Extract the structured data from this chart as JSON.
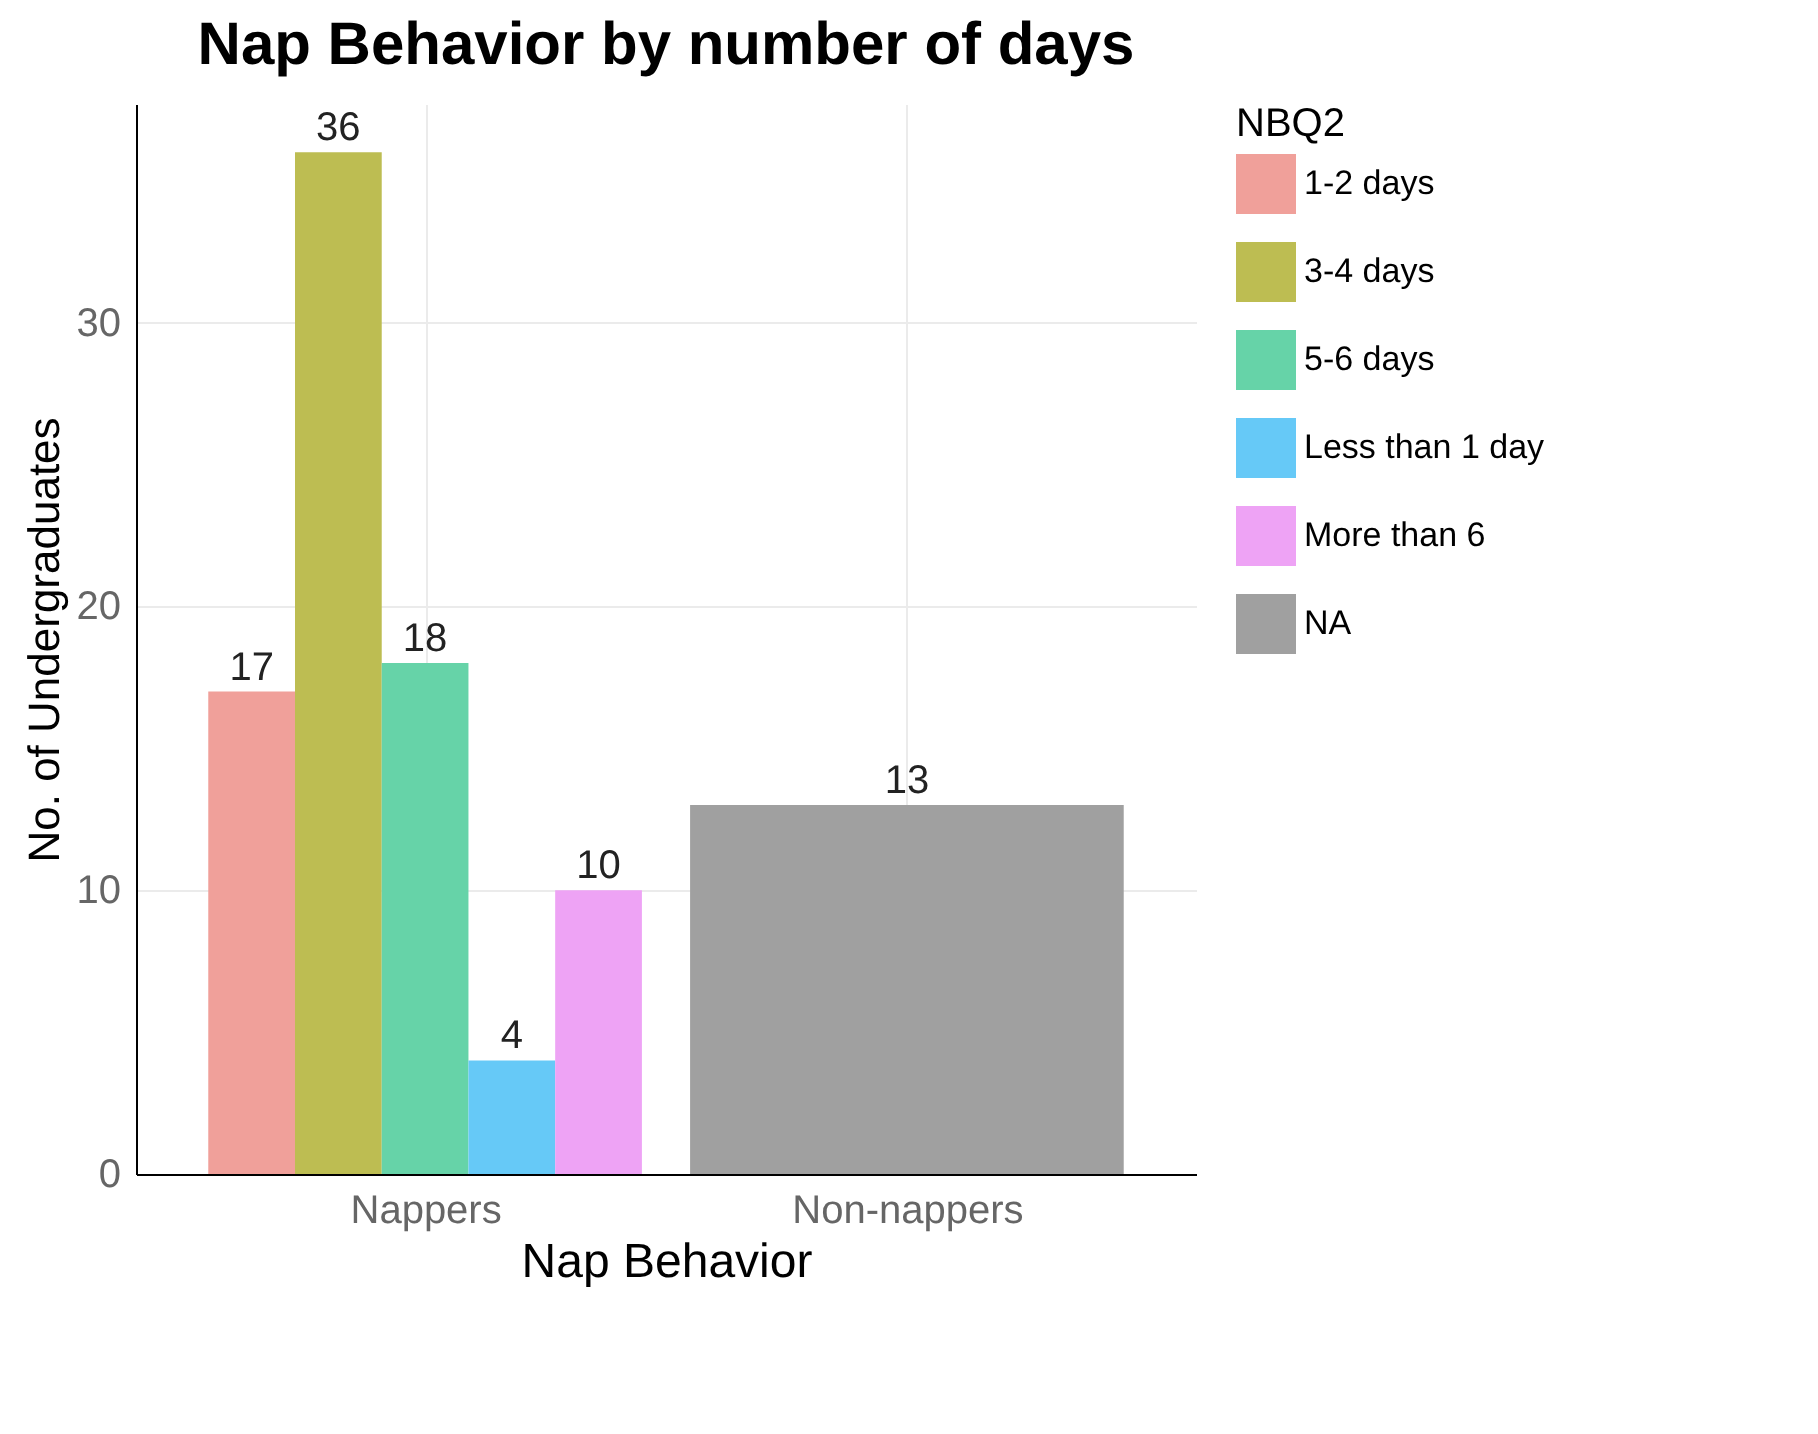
{
  "chart_data": {
    "type": "bar",
    "title": "Nap Behavior by number of days",
    "xlabel": "Nap Behavior",
    "ylabel": "No. of Undergraduates",
    "legend_title": "NBQ2",
    "categories": [
      "Nappers",
      "Non-nappers"
    ],
    "series": [
      {
        "name": "1-2 days",
        "color": "#f0a09a",
        "values": [
          17,
          null
        ]
      },
      {
        "name": "3-4 days",
        "color": "#bdbd52",
        "values": [
          36,
          null
        ]
      },
      {
        "name": "5-6 days",
        "color": "#66d3a8",
        "values": [
          18,
          null
        ]
      },
      {
        "name": "Less than 1 day",
        "color": "#66c9f7",
        "values": [
          4,
          null
        ]
      },
      {
        "name": "More than 6",
        "color": "#eea3f5",
        "values": [
          10,
          null
        ]
      },
      {
        "name": "NA",
        "color": "#a0a0a0",
        "values": [
          null,
          13
        ]
      }
    ],
    "ylim": [
      0,
      37.7
    ],
    "yticks": [
      0,
      10,
      20,
      30
    ],
    "grid": true,
    "legend": "right",
    "data_labels": true
  }
}
